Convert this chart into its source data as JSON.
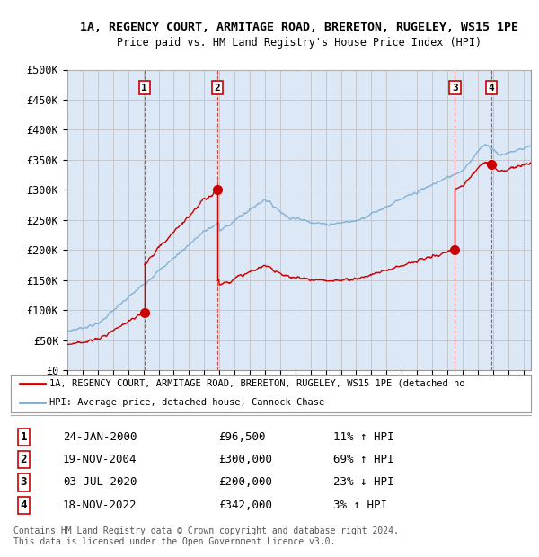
{
  "title1": "1A, REGENCY COURT, ARMITAGE ROAD, BRERETON, RUGELEY, WS15 1PE",
  "title2": "Price paid vs. HM Land Registry's House Price Index (HPI)",
  "ylabel_ticks": [
    "£0",
    "£50K",
    "£100K",
    "£150K",
    "£200K",
    "£250K",
    "£300K",
    "£350K",
    "£400K",
    "£450K",
    "£500K"
  ],
  "ytick_vals": [
    0,
    50000,
    100000,
    150000,
    200000,
    250000,
    300000,
    350000,
    400000,
    450000,
    500000
  ],
  "ylim": [
    0,
    500000
  ],
  "sale_years": [
    2000.07,
    2004.88,
    2020.5,
    2022.88
  ],
  "sale_prices": [
    96500,
    300000,
    200000,
    342000
  ],
  "sale_labels": [
    "1",
    "2",
    "3",
    "4"
  ],
  "sale_info": [
    {
      "num": "1",
      "date": "24-JAN-2000",
      "price": "£96,500",
      "pct": "11%",
      "dir": "↑"
    },
    {
      "num": "2",
      "date": "19-NOV-2004",
      "price": "£300,000",
      "pct": "69%",
      "dir": "↑"
    },
    {
      "num": "3",
      "date": "03-JUL-2020",
      "price": "£200,000",
      "pct": "23%",
      "dir": "↓"
    },
    {
      "num": "4",
      "date": "18-NOV-2022",
      "price": "£342,000",
      "pct": "3%",
      "dir": "↑"
    }
  ],
  "legend_red": "1A, REGENCY COURT, ARMITAGE ROAD, BRERETON, RUGELEY, WS15 1PE (detached ho",
  "legend_blue": "HPI: Average price, detached house, Cannock Chase",
  "footer": "Contains HM Land Registry data © Crown copyright and database right 2024.\nThis data is licensed under the Open Government Licence v3.0.",
  "background_color": "#ffffff",
  "plot_bg_color": "#dce8f5",
  "ownership_bg": "#dce8f5",
  "grid_color": "#bbbbbb",
  "red_color": "#cc0000",
  "blue_color": "#7aadd4",
  "vline_color": "#cc0000",
  "label_box_edge": "#cc0000",
  "xstart": 1995.0,
  "xend": 2025.5
}
